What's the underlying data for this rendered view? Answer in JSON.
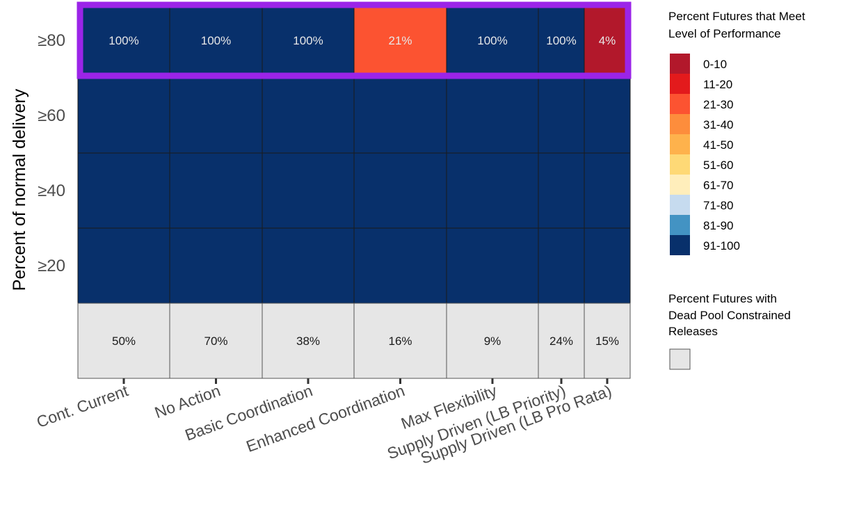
{
  "chart_data": {
    "type": "heatmap",
    "ylabel": "Percent of normal delivery",
    "y_levels": [
      "≥80",
      "≥60",
      "≥40",
      "≥20"
    ],
    "strategies": [
      "Cont. Current",
      "No Action",
      "Basic Coordination",
      "Enhanced Coordination",
      "Max Flexibility",
      "Supply Driven (LB Priority)",
      "Supply Driven (LB Pro Rata)"
    ],
    "percent_met": [
      [
        100,
        100,
        100,
        21,
        100,
        100,
        4
      ],
      [
        100,
        100,
        100,
        100,
        100,
        100,
        100
      ],
      [
        100,
        100,
        100,
        100,
        100,
        100,
        100
      ],
      [
        100,
        100,
        100,
        100,
        100,
        100,
        100
      ]
    ],
    "cell_labels": [
      [
        "100%",
        "100%",
        "100%",
        "21%",
        "100%",
        "100%",
        "4%"
      ],
      [
        "",
        "",
        "",
        "",
        "",
        "",
        ""
      ],
      [
        "",
        "",
        "",
        "",
        "",
        "",
        ""
      ],
      [
        "",
        "",
        "",
        "",
        "",
        "",
        ""
      ]
    ],
    "dead_pool_labels": [
      "50%",
      "70%",
      "38%",
      "16%",
      "9%",
      "24%",
      "15%"
    ],
    "dead_pool_values": [
      50,
      70,
      38,
      16,
      9,
      24,
      15
    ],
    "highlight_row": "≥80",
    "highlight_color": "#9b24e8",
    "dead_pool_color": "#e6e6e6",
    "legend": {
      "title_line1": "Percent Futures that Meet",
      "title_line2": "Level of Performance",
      "bins": [
        {
          "label": "0-10",
          "color": "#b2182b"
        },
        {
          "label": "11-20",
          "color": "#e31a1c"
        },
        {
          "label": "21-30",
          "color": "#fc5331"
        },
        {
          "label": "31-40",
          "color": "#fd8d3c"
        },
        {
          "label": "41-50",
          "color": "#feb24c"
        },
        {
          "label": "51-60",
          "color": "#fed976"
        },
        {
          "label": "61-70",
          "color": "#ffeebb"
        },
        {
          "label": "71-80",
          "color": "#c6dbef"
        },
        {
          "label": "81-90",
          "color": "#4393c3"
        },
        {
          "label": "91-100",
          "color": "#08306b"
        }
      ],
      "dead_pool_title_line1": "Percent Futures with",
      "dead_pool_title_line2": "Dead Pool Constrained",
      "dead_pool_title_line3": "Releases"
    }
  }
}
